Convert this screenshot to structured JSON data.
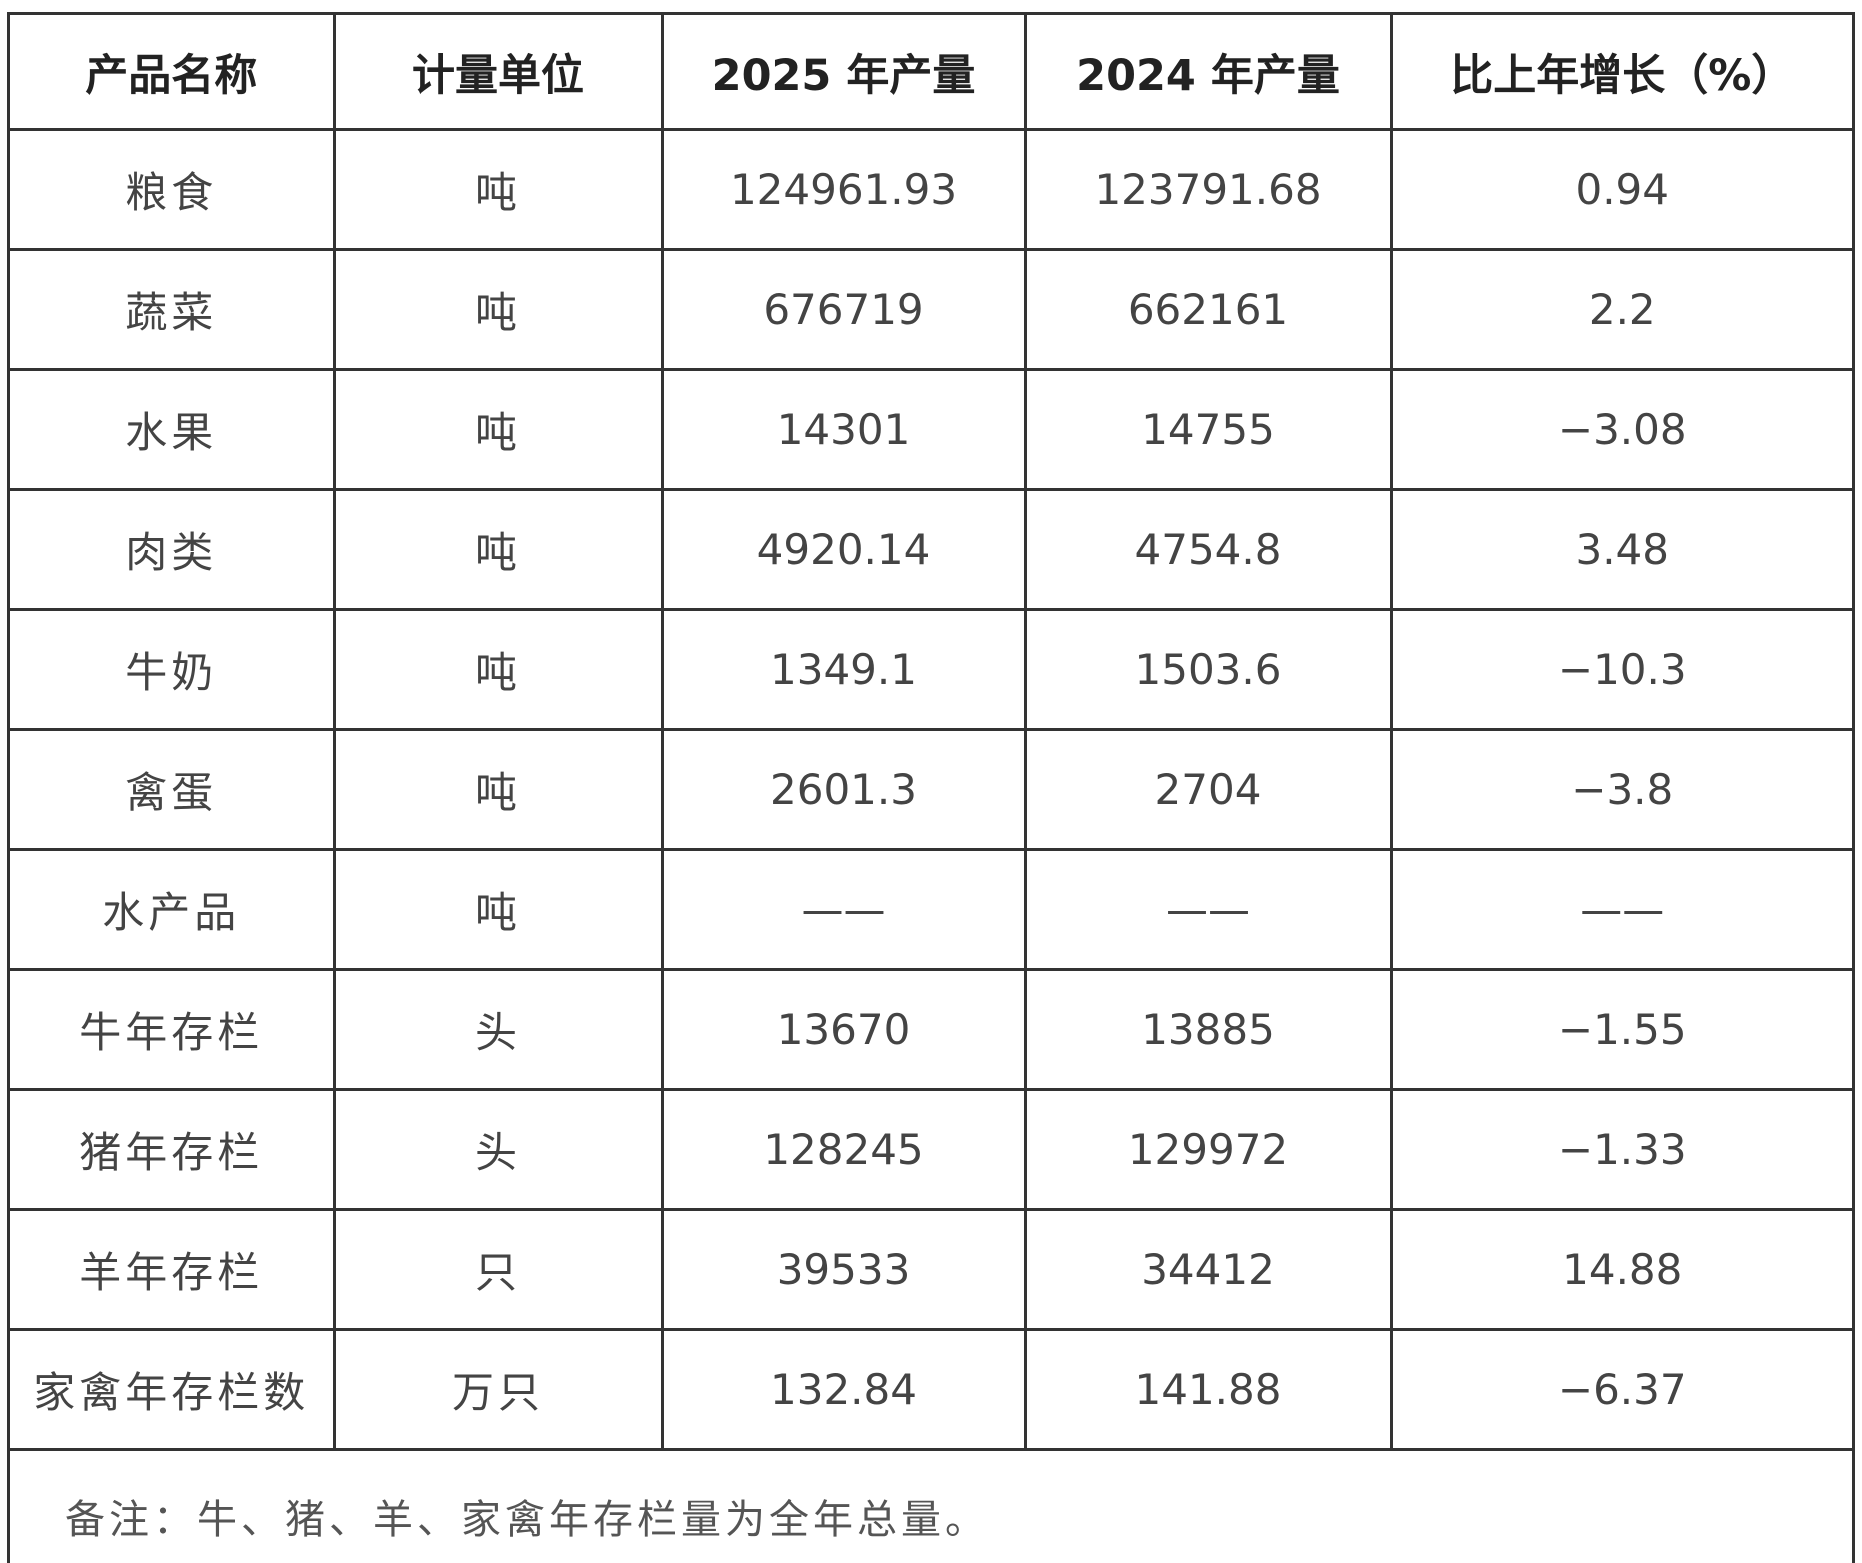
{
  "table": {
    "header": [
      "产品名称",
      "计量单位",
      "2025 年产量",
      "2024 年产量",
      "比上年增长（%）"
    ],
    "rows": [
      [
        "粮食",
        "吨",
        "124961.93",
        "123791.68",
        "0.94"
      ],
      [
        "蔬菜",
        "吨",
        "676719",
        "662161",
        "2.2"
      ],
      [
        "水果",
        "吨",
        "14301",
        "14755",
        "−3.08"
      ],
      [
        "肉类",
        "吨",
        "4920.14",
        "4754.8",
        "3.48"
      ],
      [
        "牛奶",
        "吨",
        "1349.1",
        "1503.6",
        "−10.3"
      ],
      [
        "禽蛋",
        "吨",
        "2601.3",
        "2704",
        "−3.8"
      ],
      [
        "水产品",
        "吨",
        "——",
        "——",
        "——"
      ],
      [
        "牛年存栏",
        "头",
        "13670",
        "13885",
        "−1.55"
      ],
      [
        "猪年存栏",
        "头",
        "128245",
        "129972",
        "−1.33"
      ],
      [
        "羊年存栏",
        "只",
        "39533",
        "34412",
        "14.88"
      ],
      [
        "家禽年存栏数",
        "万只",
        "132.84",
        "141.88",
        "−6.37"
      ]
    ],
    "note": "备注：牛、猪、羊、家禽年存栏量为全年总量。"
  }
}
